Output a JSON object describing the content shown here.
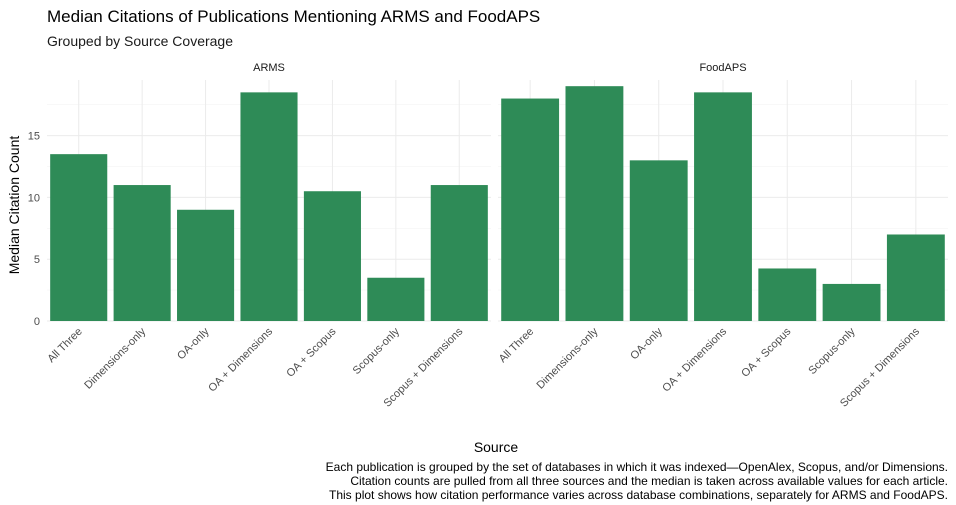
{
  "chart_data": {
    "type": "bar",
    "title": "Median Citations of Publications Mentioning ARMS and FoodAPS",
    "subtitle": "Grouped by Source Coverage",
    "xlabel": "Source",
    "ylabel": "Median Citation Count",
    "ylim": [
      0,
      19.5
    ],
    "yticks": [
      0,
      5,
      10,
      15
    ],
    "grid": true,
    "bar_color": "#2e8b57",
    "categories": [
      "All Three",
      "Dimensions-only",
      "OA-only",
      "OA + Dimensions",
      "OA + Scopus",
      "Scopus-only",
      "Scopus + Dimensions"
    ],
    "panels": [
      {
        "name": "ARMS",
        "values": [
          13.5,
          11,
          9,
          18.5,
          10.5,
          3.5,
          11
        ]
      },
      {
        "name": "FoodAPS",
        "values": [
          18,
          19,
          13,
          18.5,
          4.25,
          3,
          7
        ]
      }
    ],
    "caption": [
      "Each publication is grouped by the set of databases in which it was indexed—OpenAlex, Scopus, and/or Dimensions.",
      "Citation counts are pulled from all three sources and the median is taken across available values for each article.",
      "This plot shows how citation performance varies across database combinations, separately for ARMS and FoodAPS."
    ]
  }
}
